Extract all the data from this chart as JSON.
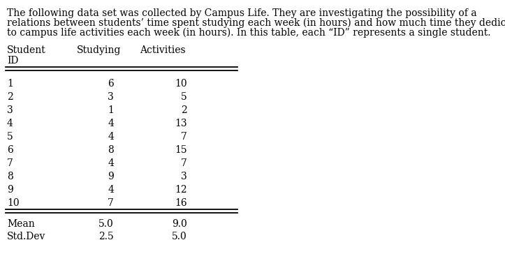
{
  "description_line1": "The following data set was collected by Campus Life. They are investigating the possibility of a",
  "description_line2": "relations between students’ time spent studying each week (in hours) and how much time they dedicate",
  "description_line3": "to campus life activities each week (in hours). In this table, each “ID” represents a single student.",
  "col_headers_line1": [
    "Student",
    "Studying",
    "Activities"
  ],
  "col_headers_line2": "ID",
  "data_rows": [
    [
      "1",
      "6",
      "10"
    ],
    [
      "2",
      "3",
      "5"
    ],
    [
      "3",
      "1",
      "2"
    ],
    [
      "4",
      "4",
      "13"
    ],
    [
      "5",
      "4",
      "7"
    ],
    [
      "6",
      "8",
      "15"
    ],
    [
      "7",
      "4",
      "7"
    ],
    [
      "8",
      "9",
      "3"
    ],
    [
      "9",
      "4",
      "12"
    ],
    [
      "10",
      "7",
      "16"
    ]
  ],
  "summary_rows": [
    [
      "Mean",
      "5.0",
      "9.0"
    ],
    [
      "Std.Dev",
      "2.5",
      "5.0"
    ]
  ],
  "font_family": "DejaVu Serif",
  "font_size": 10,
  "desc_font_size": 10,
  "bg_color": "#ffffff",
  "text_color": "#000000"
}
